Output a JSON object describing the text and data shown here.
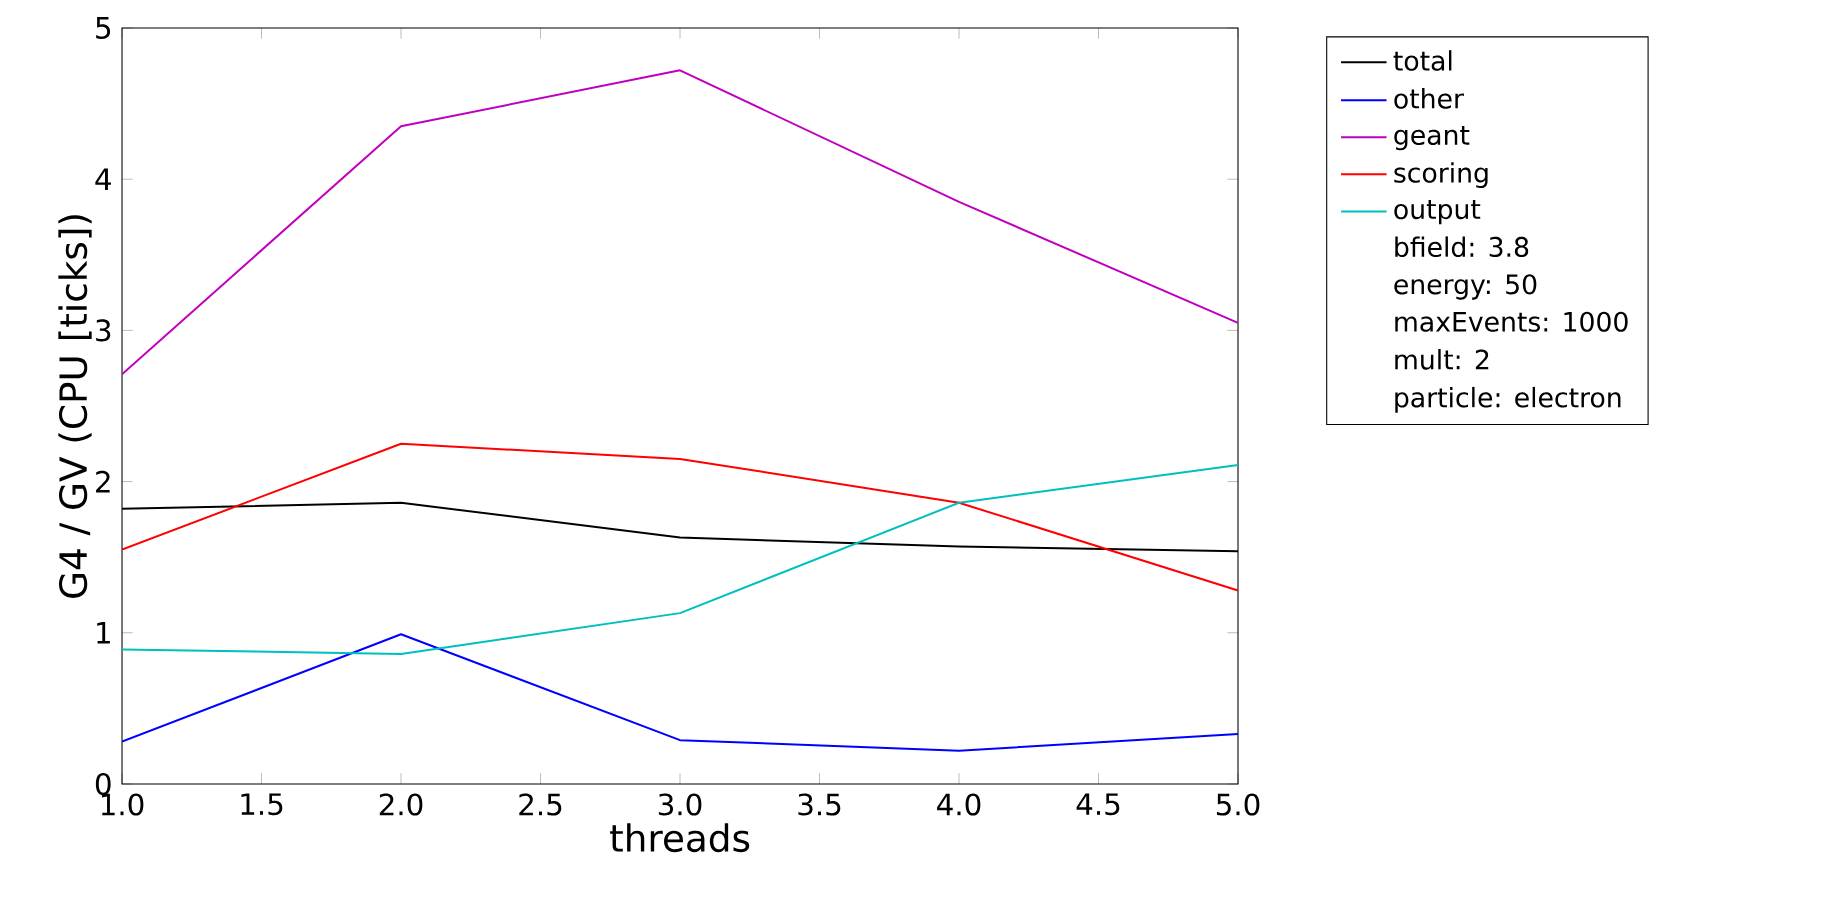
{
  "chart_data": {
    "type": "line",
    "xlabel": "threads",
    "ylabel": "G4 / GV (CPU [ticks])",
    "x": [
      1,
      2,
      3,
      4,
      5
    ],
    "series": [
      {
        "name": "total",
        "color": "#000000",
        "values": [
          1.82,
          1.86,
          1.63,
          1.57,
          1.54
        ]
      },
      {
        "name": "other",
        "color": "#0000ff",
        "values": [
          0.28,
          0.99,
          0.29,
          0.22,
          0.33
        ]
      },
      {
        "name": "geant",
        "color": "#bf00bf",
        "values": [
          2.71,
          4.35,
          4.72,
          3.85,
          3.05
        ]
      },
      {
        "name": "scoring",
        "color": "#ff0000",
        "values": [
          1.55,
          2.25,
          2.15,
          1.86,
          1.28
        ]
      },
      {
        "name": "output",
        "color": "#00bfbf",
        "values": [
          0.89,
          0.86,
          1.13,
          1.86,
          2.11
        ]
      }
    ],
    "annotations": [
      "bfield: 3.8",
      "energy: 50",
      "maxEvents: 1000",
      "mult: 2",
      "particle: electron"
    ],
    "xlim": [
      1,
      5
    ],
    "ylim": [
      0,
      5
    ],
    "xticks": [
      {
        "value": 1,
        "label": "1.0"
      },
      {
        "value": 1.5,
        "label": "1.5"
      },
      {
        "value": 2,
        "label": "2.0"
      },
      {
        "value": 2.5,
        "label": "2.5"
      },
      {
        "value": 3,
        "label": "3.0"
      },
      {
        "value": 3.5,
        "label": "3.5"
      },
      {
        "value": 4,
        "label": "4.0"
      },
      {
        "value": 4.5,
        "label": "4.5"
      },
      {
        "value": 5,
        "label": "5.0"
      }
    ],
    "yticks": [
      0,
      1,
      2,
      3,
      4,
      5
    ],
    "legend": "right",
    "grid": false,
    "marker": "none",
    "line_style": "solid"
  }
}
